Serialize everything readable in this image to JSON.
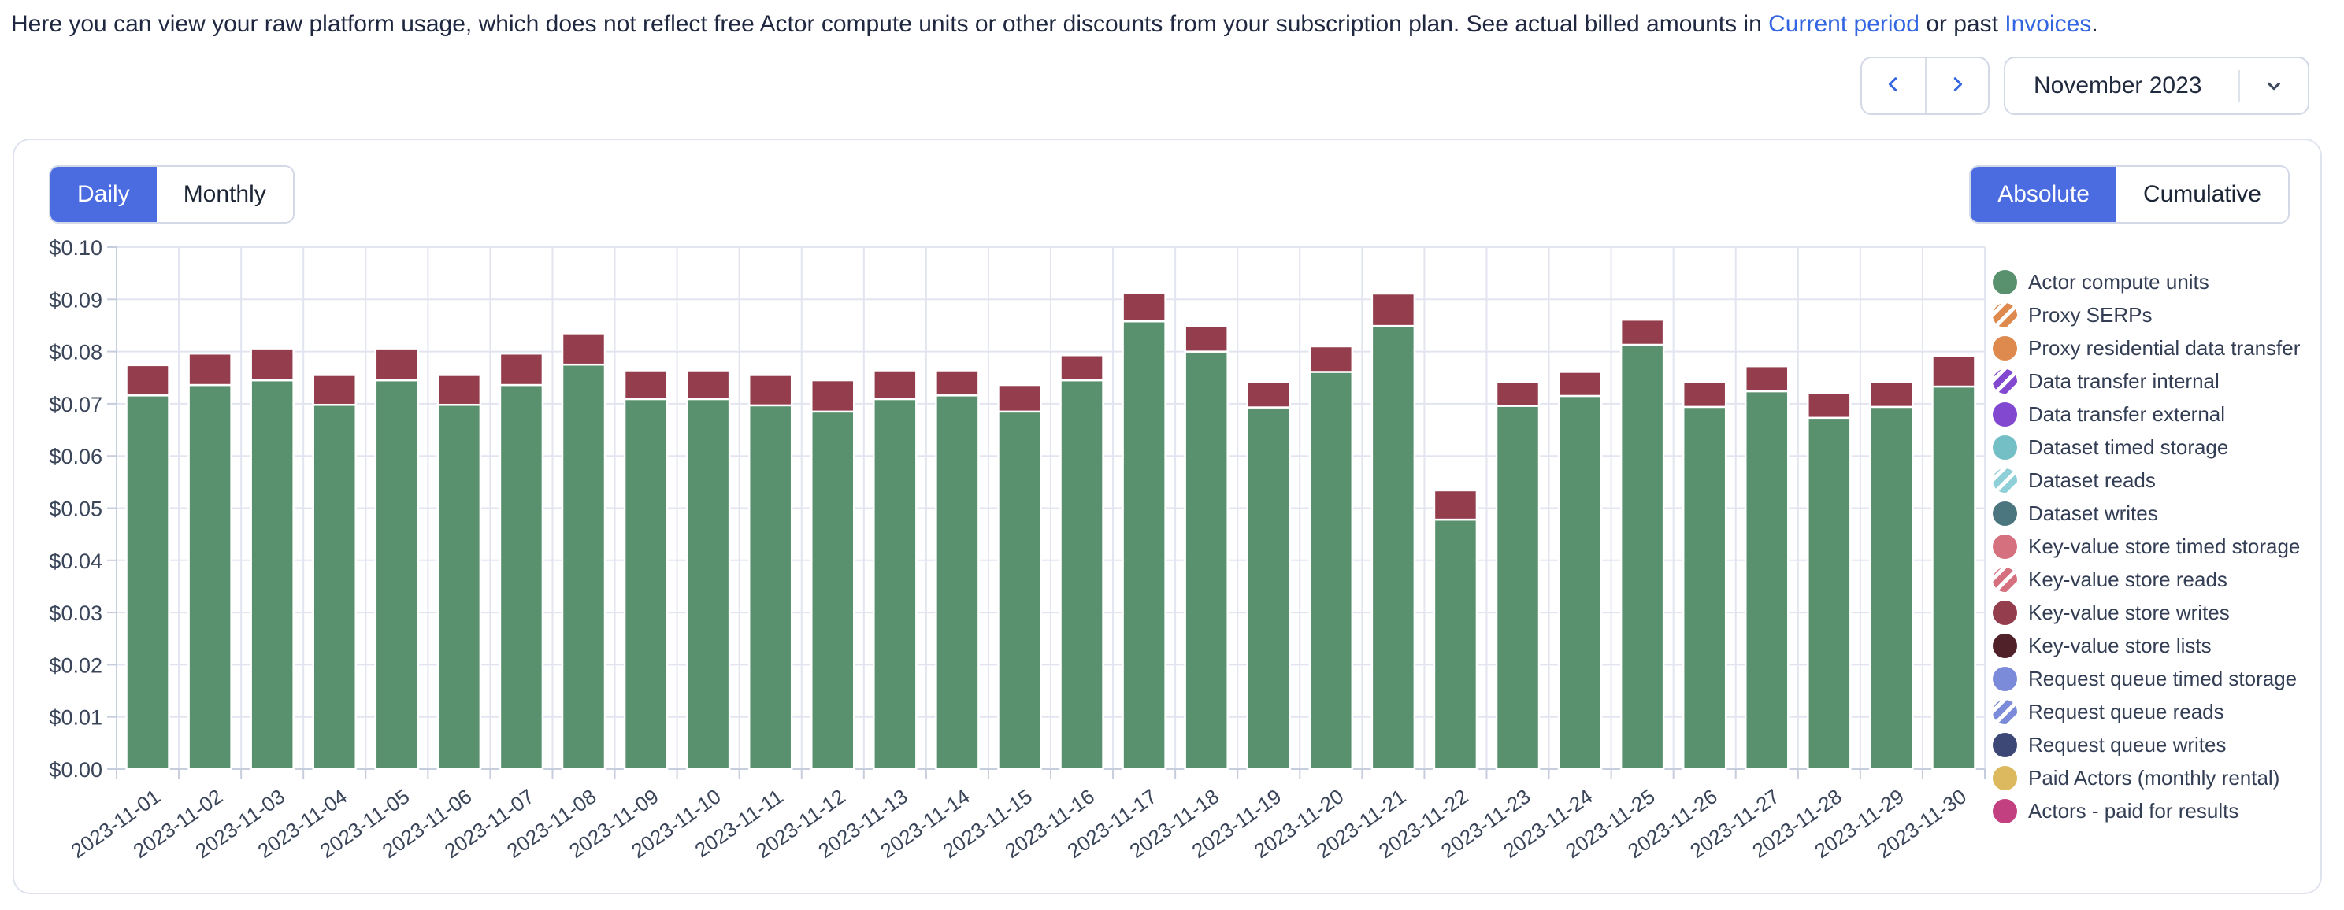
{
  "header": {
    "text_before_link1": "Here you can view your raw platform usage, which does not reflect free Actor compute units or other discounts from your subscription plan. See actual billed amounts in ",
    "link1": "Current period",
    "text_between_links": " or past ",
    "link2": "Invoices",
    "text_after_link2": "."
  },
  "controls": {
    "prev_month_icon": "chevron-left",
    "next_month_icon": "chevron-right",
    "period_selector": {
      "value": "November 2023",
      "icon": "chevron-down"
    },
    "granularity_toggle": {
      "options": [
        "Daily",
        "Monthly"
      ],
      "selected": "Daily"
    },
    "mode_toggle": {
      "options": [
        "Absolute",
        "Cumulative"
      ],
      "selected": "Absolute"
    }
  },
  "colors": {
    "accent_blue": "#4a6ce0",
    "link_blue": "#3366e0",
    "gridline": "#e2e5f0",
    "axis_line": "#c6cddc",
    "axis_text": "#3a4559",
    "bar_green": "#59916e",
    "bar_red": "#943d4d"
  },
  "chart_data": {
    "type": "bar",
    "stacked": true,
    "x": [
      "2023-11-01",
      "2023-11-02",
      "2023-11-03",
      "2023-11-04",
      "2023-11-05",
      "2023-11-06",
      "2023-11-07",
      "2023-11-08",
      "2023-11-09",
      "2023-11-10",
      "2023-11-11",
      "2023-11-12",
      "2023-11-13",
      "2023-11-14",
      "2023-11-15",
      "2023-11-16",
      "2023-11-17",
      "2023-11-18",
      "2023-11-19",
      "2023-11-20",
      "2023-11-21",
      "2023-11-22",
      "2023-11-23",
      "2023-11-24",
      "2023-11-25",
      "2023-11-26",
      "2023-11-27",
      "2023-11-28",
      "2023-11-29",
      "2023-11-30"
    ],
    "series": [
      {
        "name": "Actor compute units",
        "color": "#59916e",
        "values": [
          0.0716,
          0.0736,
          0.0745,
          0.0698,
          0.0745,
          0.0698,
          0.0736,
          0.0775,
          0.0709,
          0.0709,
          0.0697,
          0.0685,
          0.0709,
          0.0716,
          0.0685,
          0.0745,
          0.0858,
          0.08,
          0.0693,
          0.0761,
          0.0849,
          0.0478,
          0.0696,
          0.0715,
          0.0813,
          0.0694,
          0.0724,
          0.0673,
          0.0694,
          0.0733
        ]
      },
      {
        "name": "Key-value store writes",
        "color": "#943d4d",
        "values": [
          0.0058,
          0.006,
          0.0061,
          0.0057,
          0.0061,
          0.0057,
          0.006,
          0.006,
          0.0055,
          0.0055,
          0.0058,
          0.006,
          0.0055,
          0.0048,
          0.0051,
          0.0048,
          0.0054,
          0.0049,
          0.0049,
          0.0049,
          0.0062,
          0.0056,
          0.0046,
          0.0046,
          0.0048,
          0.0048,
          0.0048,
          0.0048,
          0.0048,
          0.0058
        ]
      }
    ],
    "ylim": [
      0,
      0.1
    ],
    "ytick_step": 0.01,
    "y_ticks": [
      "$0.00",
      "$0.01",
      "$0.02",
      "$0.03",
      "$0.04",
      "$0.05",
      "$0.06",
      "$0.07",
      "$0.08",
      "$0.09",
      "$0.10"
    ],
    "grid": true,
    "legend_position": "right",
    "legend": [
      {
        "label": "Actor compute units",
        "color": "#59916e",
        "striped": false
      },
      {
        "label": "Proxy SERPs",
        "color": "#de8a4e",
        "striped": true
      },
      {
        "label": "Proxy residential data transfer",
        "color": "#de8a4e",
        "striped": false
      },
      {
        "label": "Data transfer internal",
        "color": "#8249d0",
        "striped": true
      },
      {
        "label": "Data transfer external",
        "color": "#8249d0",
        "striped": false
      },
      {
        "label": "Dataset timed storage",
        "color": "#74bec6",
        "striped": false
      },
      {
        "label": "Dataset reads",
        "color": "#8fd0d8",
        "striped": true
      },
      {
        "label": "Dataset writes",
        "color": "#4b7680",
        "striped": false
      },
      {
        "label": "Key-value store timed storage",
        "color": "#d5707f",
        "striped": false
      },
      {
        "label": "Key-value store reads",
        "color": "#d5707f",
        "striped": true
      },
      {
        "label": "Key-value store writes",
        "color": "#943d4d",
        "striped": false
      },
      {
        "label": "Key-value store lists",
        "color": "#512129",
        "striped": false
      },
      {
        "label": "Request queue timed storage",
        "color": "#7b8bda",
        "striped": false
      },
      {
        "label": "Request queue reads",
        "color": "#7b8bda",
        "striped": true
      },
      {
        "label": "Request queue writes",
        "color": "#3d4877",
        "striped": false
      },
      {
        "label": "Paid Actors (monthly rental)",
        "color": "#dcb85e",
        "striped": false
      },
      {
        "label": "Actors - paid for results",
        "color": "#c24080",
        "striped": false
      }
    ]
  }
}
